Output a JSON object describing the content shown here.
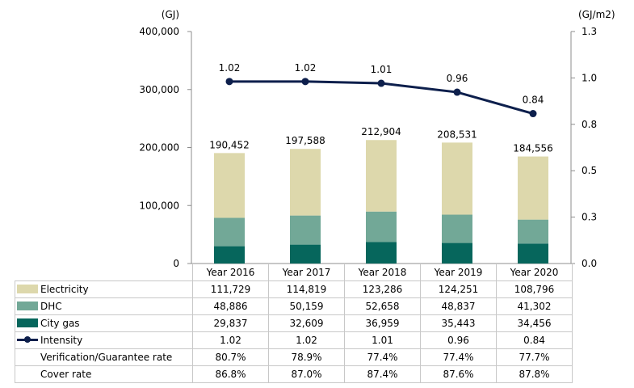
{
  "chart_data": {
    "type": "bar",
    "stacked": true,
    "categories": [
      "Year 2016",
      "Year 2017",
      "Year 2018",
      "Year 2019",
      "Year 2020"
    ],
    "left_axis": {
      "unit": "(GJ)",
      "ylim": [
        0,
        400000
      ],
      "ticks": [
        "0",
        "100,000",
        "200,000",
        "300,000",
        "400,000"
      ]
    },
    "right_axis": {
      "unit": "(GJ/m2)",
      "ylim": [
        0,
        1.3
      ],
      "ticks": [
        "0.0",
        "0.3",
        "0.5",
        "0.8",
        "1.0",
        "1.3"
      ]
    },
    "colors": {
      "Electricity": "#ddd8ac",
      "DHC": "#72a897",
      "City gas": "#06665c",
      "Intensity": "#0d1f4c"
    },
    "series": [
      {
        "name": "City gas",
        "values": [
          29837,
          32609,
          36959,
          35443,
          34456
        ],
        "display": [
          "29,837",
          "32,609",
          "36,959",
          "35,443",
          "34,456"
        ]
      },
      {
        "name": "DHC",
        "values": [
          48886,
          50159,
          52658,
          48837,
          41302
        ],
        "display": [
          "48,886",
          "50,159",
          "52,658",
          "48,837",
          "41,302"
        ]
      },
      {
        "name": "Electricity",
        "values": [
          111729,
          114819,
          123286,
          124251,
          108796
        ],
        "display": [
          "111,729",
          "114,819",
          "123,286",
          "124,251",
          "108,796"
        ]
      }
    ],
    "totals": [
      "190,452",
      "197,588",
      "212,904",
      "208,531",
      "184,556"
    ],
    "totals_values": [
      190452,
      197588,
      212904,
      208531,
      184556
    ],
    "intensity": {
      "name": "Intensity",
      "type": "line",
      "axis": "right",
      "values": [
        1.02,
        1.02,
        1.01,
        0.96,
        0.84
      ],
      "display": [
        "1.02",
        "1.02",
        "1.01",
        "0.96",
        "0.84"
      ]
    },
    "table_rows": [
      {
        "label": "Electricity",
        "key": "Electricity",
        "values": [
          "111,729",
          "114,819",
          "123,286",
          "124,251",
          "108,796"
        ]
      },
      {
        "label": "DHC",
        "key": "DHC",
        "values": [
          "48,886",
          "50,159",
          "52,658",
          "48,837",
          "41,302"
        ]
      },
      {
        "label": "City gas",
        "key": "City gas",
        "values": [
          "29,837",
          "32,609",
          "36,959",
          "35,443",
          "34,456"
        ]
      },
      {
        "label": "Intensity",
        "key": "Intensity",
        "values": [
          "1.02",
          "1.02",
          "1.01",
          "0.96",
          "0.84"
        ]
      },
      {
        "label": "Verification/Guarantee rate",
        "key": null,
        "values": [
          "80.7%",
          "78.9%",
          "77.4%",
          "77.4%",
          "77.7%"
        ]
      },
      {
        "label": "Cover rate",
        "key": null,
        "values": [
          "86.8%",
          "87.0%",
          "87.4%",
          "87.6%",
          "87.8%"
        ]
      }
    ]
  }
}
